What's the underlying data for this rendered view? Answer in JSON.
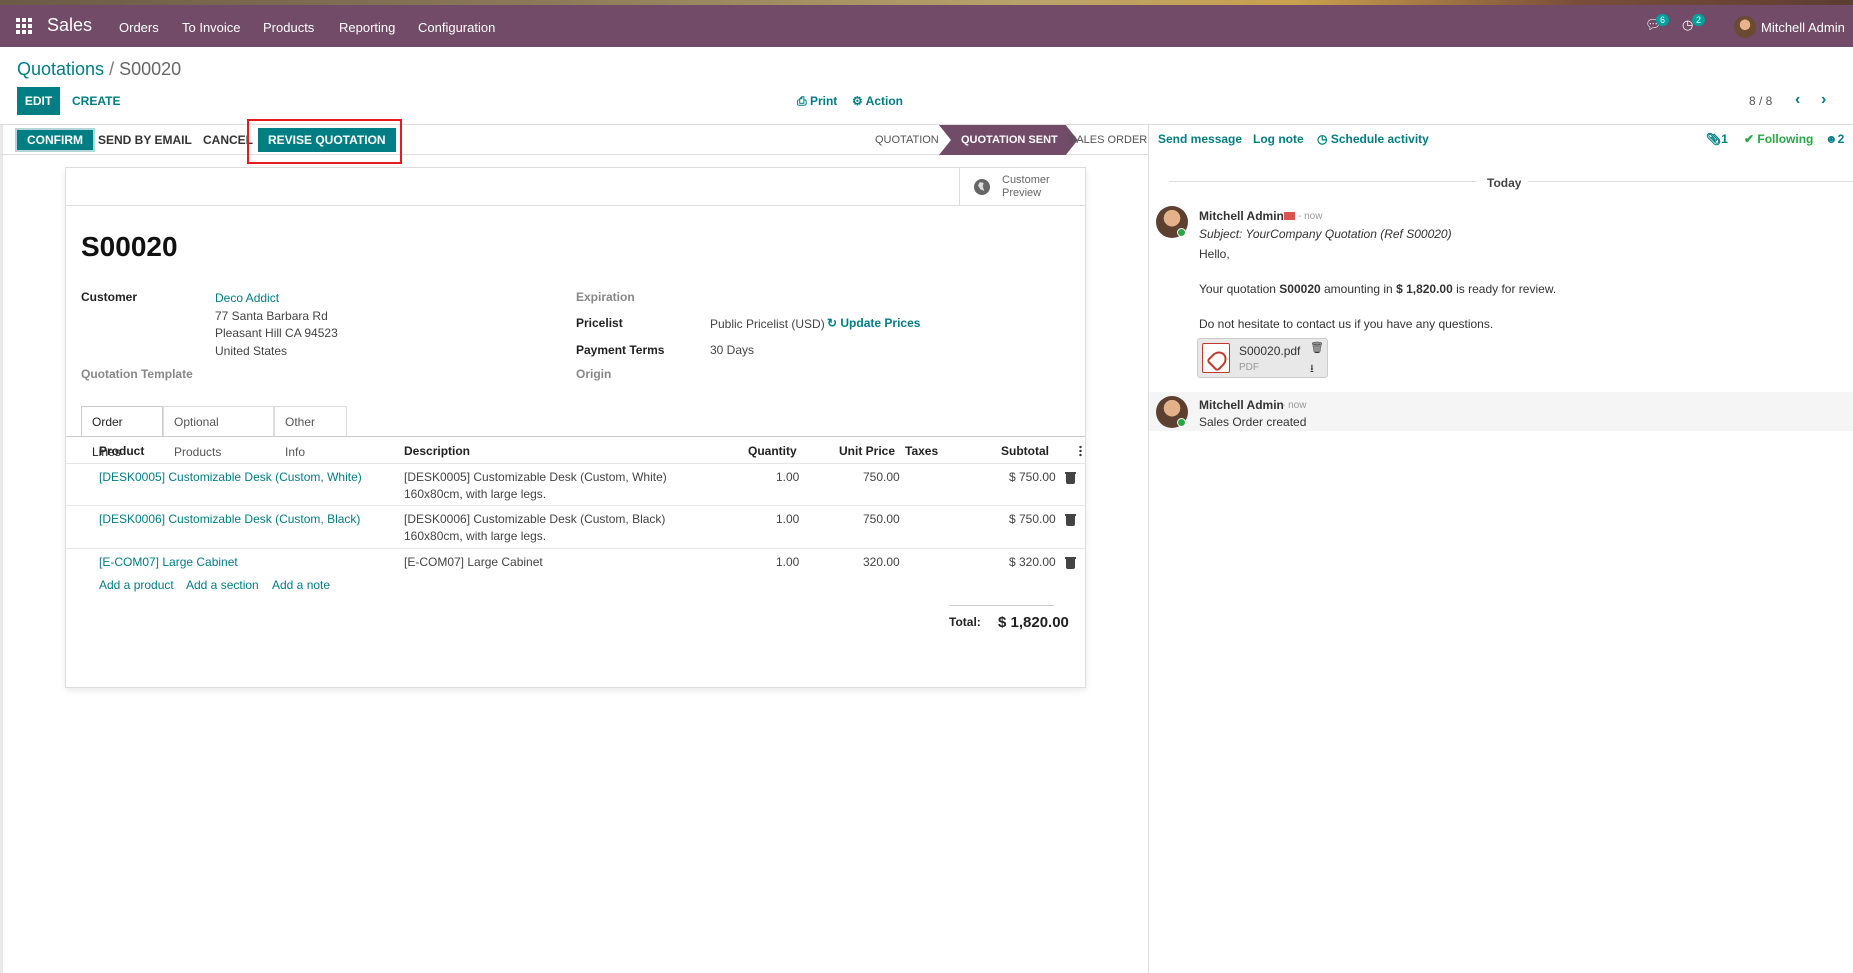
{
  "navbar": {
    "app_name": "Sales",
    "menu": [
      "Orders",
      "To Invoice",
      "Products",
      "Reporting",
      "Configuration"
    ],
    "messages_count": "6",
    "activities_count": "2",
    "user": "Mitchell Admin"
  },
  "breadcrumb": {
    "parent": "Quotations",
    "separator": "/",
    "current": "S00020"
  },
  "control": {
    "edit": "EDIT",
    "create": "CREATE",
    "print": "Print",
    "action": "Action",
    "pager": "8 / 8"
  },
  "statusbar": {
    "buttons": [
      "CONFIRM",
      "SEND BY EMAIL",
      "CANCEL",
      "REVISE QUOTATION"
    ],
    "stages": [
      "QUOTATION",
      "QUOTATION SENT",
      "SALES ORDER"
    ],
    "active_stage": "QUOTATION SENT"
  },
  "form": {
    "preview_label": [
      "Customer",
      "Preview"
    ],
    "name": "S00020",
    "customer_label": "Customer",
    "customer_name": "Deco Addict",
    "customer_address": [
      "77 Santa Barbara Rd",
      "Pleasant Hill CA 94523",
      "United States"
    ],
    "template_label": "Quotation Template",
    "expiration_label": "Expiration",
    "pricelist_label": "Pricelist",
    "pricelist_value": "Public Pricelist (USD)",
    "update_prices": "Update Prices",
    "payment_terms_label": "Payment Terms",
    "payment_terms_value": "30 Days",
    "origin_label": "Origin"
  },
  "tabs": [
    "Order Lines",
    "Optional Products",
    "Other Info"
  ],
  "table": {
    "headers": [
      "Product",
      "Description",
      "Quantity",
      "Unit Price",
      "Taxes",
      "Subtotal"
    ],
    "rows": [
      {
        "product": "[DESK0005] Customizable Desk (Custom, White)",
        "desc1": "[DESK0005] Customizable Desk (Custom, White)",
        "desc2": "160x80cm, with large legs.",
        "qty": "1.00",
        "price": "750.00",
        "subtotal": "$ 750.00"
      },
      {
        "product": "[DESK0006] Customizable Desk (Custom, Black)",
        "desc1": "[DESK0006] Customizable Desk (Custom, Black)",
        "desc2": "160x80cm, with large legs.",
        "qty": "1.00",
        "price": "750.00",
        "subtotal": "$ 750.00"
      },
      {
        "product": "[E-COM07] Large Cabinet",
        "desc1": "[E-COM07] Large Cabinet",
        "desc2": "",
        "qty": "1.00",
        "price": "320.00",
        "subtotal": "$ 320.00"
      }
    ],
    "add_product": "Add a product",
    "add_section": "Add a section",
    "add_note": "Add a note",
    "total_label": "Total:",
    "total_value": "$ 1,820.00"
  },
  "chatter": {
    "send_message": "Send message",
    "log_note": "Log note",
    "schedule_activity": "Schedule activity",
    "attachments_count": "1",
    "following": "Following",
    "followers_count": "2",
    "today": "Today",
    "msg1": {
      "author": "Mitchell Admin",
      "ago": "- now",
      "subject": "Subject: YourCompany Quotation (Ref S00020)",
      "hello": "Hello,",
      "line_pre": "Your quotation ",
      "line_ref": "S00020",
      "line_mid": " amounting in ",
      "line_amount": "$ 1,820.00",
      "line_post": " is ready for review.",
      "line2": "Do not hesitate to contact us if you have any questions.",
      "attachment_name": "S00020.pdf",
      "attachment_type": "PDF"
    },
    "msg2": {
      "author": "Mitchell Admin",
      "ago": "- now",
      "text": "Sales Order created"
    }
  },
  "colors": {
    "brand": "#714b67",
    "accent": "#017e84",
    "highlight": "#e8191f"
  }
}
